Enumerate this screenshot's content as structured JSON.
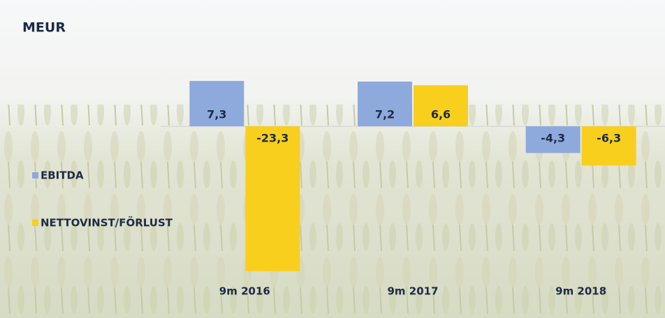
{
  "chart_data": {
    "type": "bar",
    "title": "MEUR",
    "categories": [
      "9m 2016",
      "9m 2017",
      "9m 2018"
    ],
    "series": [
      {
        "name": "EBITDA",
        "color": "#8eaadc",
        "values": [
          7.3,
          7.2,
          -4.3
        ],
        "value_labels": [
          "7,3",
          "7,2",
          "-4,3"
        ]
      },
      {
        "name": "NETTOVINST/FÖRLUST",
        "color": "#f8cf1c",
        "values": [
          -23.3,
          6.6,
          -6.3
        ],
        "value_labels": [
          "-23,3",
          "6,6",
          "-6,3"
        ]
      }
    ],
    "ylim": [
      -24,
      10
    ],
    "legend": "left"
  }
}
